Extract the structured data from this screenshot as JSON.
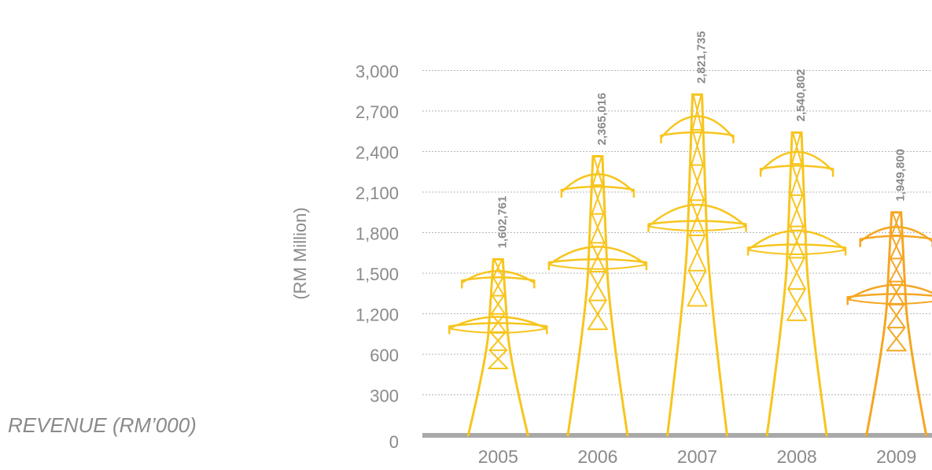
{
  "chart_data": {
    "type": "pylon",
    "title": "REVENUE",
    "subtitle": "(RM’000)",
    "y_label": "(RM Million)",
    "categories": [
      "2005",
      "2006",
      "2007",
      "2008",
      "2009"
    ],
    "values": [
      1602.761,
      2365.016,
      2821.735,
      2540.802,
      1949.8
    ],
    "value_labels": [
      "1,602,761",
      "2,365,016",
      "2,821,735",
      "2,540,802",
      "1,949,800"
    ],
    "colors": [
      "#f7c51e",
      "#f7c51e",
      "#f7c51e",
      "#f7c51e",
      "#f5a623"
    ],
    "ylim": [
      0,
      3000
    ],
    "yticks": [
      0,
      300,
      600,
      {
        "value": 1200,
        "label": "1,200"
      },
      {
        "value": 1500,
        "label": "1,500"
      },
      {
        "value": 1800,
        "label": "1,800"
      },
      {
        "value": 2100,
        "label": "2,100"
      },
      {
        "value": 2400,
        "label": "2,400"
      },
      {
        "value": 2700,
        "label": "2,700"
      },
      {
        "value": 3000,
        "label": "3,000"
      }
    ],
    "grid": true
  }
}
